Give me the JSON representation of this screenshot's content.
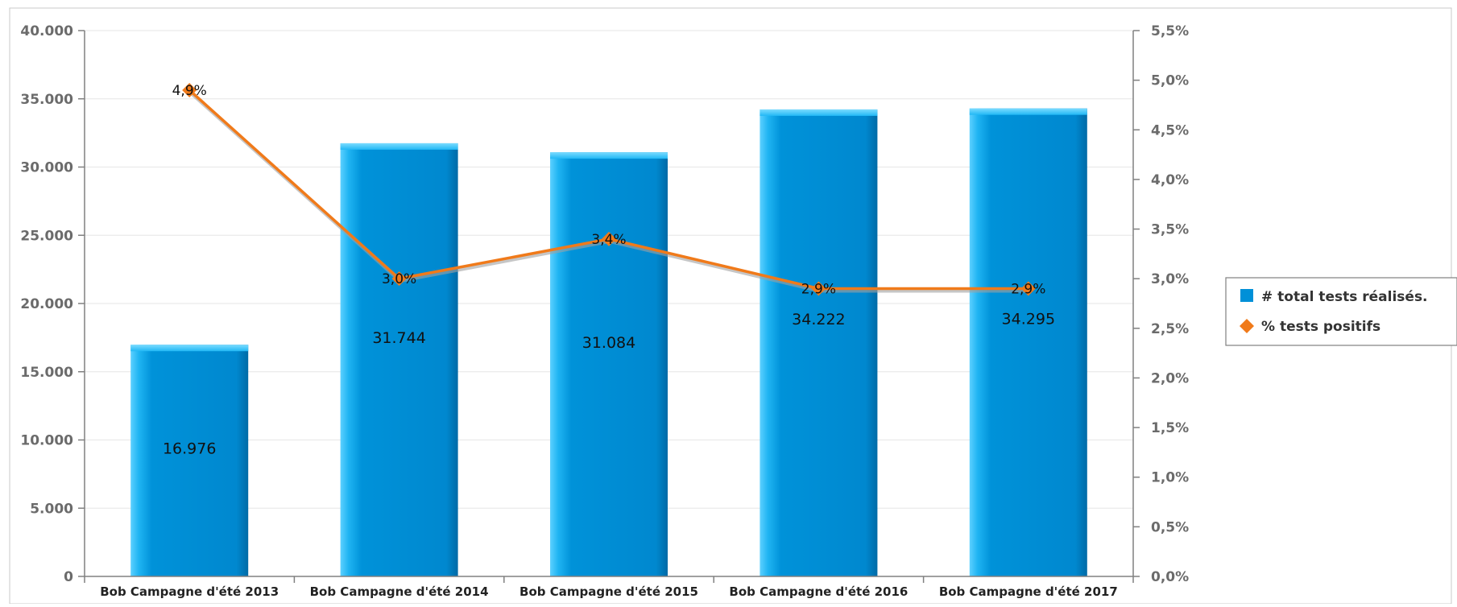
{
  "chart_data": {
    "type": "bar",
    "categories": [
      "Bob Campagne d'été 2013",
      "Bob Campagne d'été 2014",
      "Bob Campagne d'été 2015",
      "Bob Campagne d'été 2016",
      "Bob Campagne d'été 2017"
    ],
    "series": [
      {
        "name": "# total tests réalisés.",
        "kind": "bar",
        "axis": "left",
        "values": [
          16976,
          31744,
          31084,
          34222,
          34295
        ],
        "labels": [
          "16.976",
          "31.744",
          "31.084",
          "34.222",
          "34.295"
        ],
        "color": "#0090d8"
      },
      {
        "name": "% tests positifs",
        "kind": "line",
        "axis": "right",
        "values": [
          4.9,
          3.0,
          3.4,
          2.9,
          2.9
        ],
        "labels": [
          "4,9%",
          "3,0%",
          "3,4%",
          "2,9%",
          "2,9%"
        ],
        "color": "#f07a1a"
      }
    ],
    "y_left": {
      "range": [
        0,
        40000
      ],
      "ticks": [
        "0",
        "5.000",
        "10.000",
        "15.000",
        "20.000",
        "25.000",
        "30.000",
        "35.000",
        "40.000"
      ]
    },
    "y_right": {
      "range": [
        0,
        5.5
      ],
      "ticks": [
        "0,0%",
        "0,5%",
        "1,0%",
        "1,5%",
        "2,0%",
        "2,5%",
        "3,0%",
        "3,5%",
        "4,0%",
        "4,5%",
        "5,0%",
        "5,5%"
      ]
    },
    "grid": true,
    "legend": "right",
    "title": "",
    "xlabel": "",
    "ylabel": ""
  }
}
